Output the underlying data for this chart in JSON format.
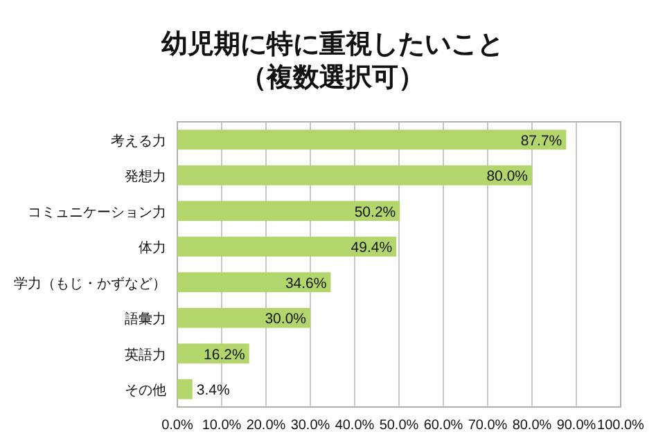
{
  "chart_data": {
    "type": "bar",
    "orientation": "horizontal",
    "title": "幼児期に特に重視したいこと（複数選択可）",
    "categories": [
      "考える力",
      "発想力",
      "コミュニケーション力",
      "体力",
      "学力（もじ・かずなど）",
      "語彙力",
      "英語力",
      "その他"
    ],
    "values": [
      87.7,
      80.0,
      50.2,
      49.4,
      34.6,
      30.0,
      16.2,
      3.4
    ],
    "value_labels": [
      "87.7%",
      "80.0%",
      "50.2%",
      "49.4%",
      "34.6%",
      "30.0%",
      "16.2%",
      "3.4%"
    ],
    "color": "#b3d66c",
    "xlim": [
      0,
      100
    ],
    "xticks": [
      {
        "value": 0,
        "label": "0.0%"
      },
      {
        "value": 10,
        "label": "10.0%"
      },
      {
        "value": 20,
        "label": "20.0%"
      },
      {
        "value": 30,
        "label": "30.0%"
      },
      {
        "value": 40,
        "label": "40.0%"
      },
      {
        "value": 50,
        "label": "50.0%"
      },
      {
        "value": 60,
        "label": "60.0%"
      },
      {
        "value": 70,
        "label": "70.0%"
      },
      {
        "value": 80,
        "label": "80.0%"
      },
      {
        "value": 90,
        "label": "90.0%"
      },
      {
        "value": 100,
        "label": "100.0%"
      }
    ],
    "grid": "x"
  }
}
